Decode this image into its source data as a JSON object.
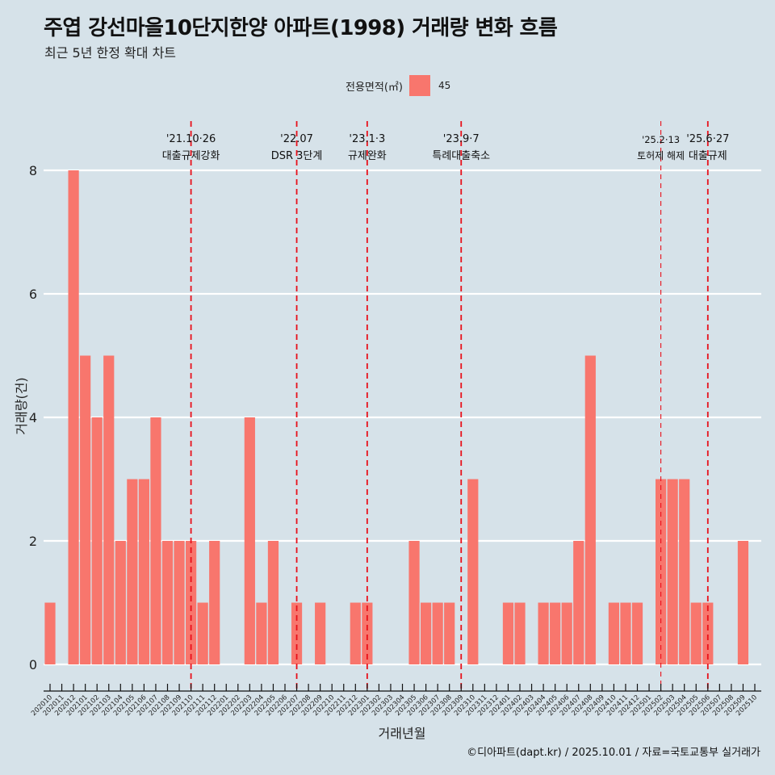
{
  "title": "주엽 강선마을10단지한양 아파트(1998) 거래량 변화 흐름",
  "subtitle": "최근 5년 한정 확대 차트",
  "caption": "©디아파트(dapt.kr) / 2025.10.01 / 자료=국토교통부 실거래가",
  "colors": {
    "background": "#d6e2e9",
    "bar": "#f8766d",
    "event_line": "#e8101a",
    "grid": "#ffffff"
  },
  "legend": {
    "title": "전용면적(㎡)",
    "entries": [
      {
        "label": "45",
        "color": "#f8766d"
      }
    ]
  },
  "chart_data": {
    "type": "bar",
    "title": "주엽 강선마을10단지한양 아파트(1998) 거래량 변화 흐름",
    "subtitle": "최근 5년 한정 확대 차트",
    "xlabel": "거래년월",
    "ylabel": "거래량(건)",
    "ylim": [
      0,
      8
    ],
    "yticks": [
      0,
      2,
      4,
      6,
      8
    ],
    "grid": true,
    "legend_position": "top",
    "categories": [
      "202010",
      "202011",
      "202012",
      "202101",
      "202102",
      "202103",
      "202104",
      "202105",
      "202106",
      "202107",
      "202108",
      "202109",
      "202110",
      "202111",
      "202112",
      "202201",
      "202202",
      "202203",
      "202204",
      "202205",
      "202206",
      "202207",
      "202208",
      "202209",
      "202210",
      "202211",
      "202212",
      "202301",
      "202302",
      "202303",
      "202304",
      "202305",
      "202306",
      "202307",
      "202308",
      "202309",
      "202310",
      "202311",
      "202312",
      "202401",
      "202402",
      "202403",
      "202404",
      "202405",
      "202406",
      "202407",
      "202408",
      "202409",
      "202410",
      "202411",
      "202412",
      "202501",
      "202502",
      "202503",
      "202504",
      "202505",
      "202506",
      "202507",
      "202508",
      "202509",
      "202510"
    ],
    "series": [
      {
        "name": "45",
        "values": [
          1,
          0,
          8,
          5,
          4,
          5,
          2,
          3,
          3,
          4,
          2,
          2,
          2,
          1,
          2,
          0,
          0,
          4,
          1,
          2,
          0,
          1,
          0,
          1,
          0,
          0,
          1,
          1,
          0,
          0,
          0,
          2,
          1,
          1,
          1,
          0,
          3,
          0,
          0,
          1,
          1,
          0,
          1,
          1,
          1,
          2,
          5,
          0,
          1,
          1,
          1,
          0,
          3,
          3,
          3,
          1,
          1,
          0,
          0,
          2,
          0
        ]
      }
    ],
    "annotations": [
      {
        "category": "202110",
        "date": "'21.10·26",
        "label": "대출규제강화",
        "style": "thick"
      },
      {
        "category": "202207",
        "date": "'22.07",
        "label": "DSR 3단계",
        "style": "thick"
      },
      {
        "category": "202301",
        "date": "'23.1·3",
        "label": "규제완화",
        "style": "thick"
      },
      {
        "category": "202309",
        "date": "'23.9·7",
        "label": "특례대출축소",
        "style": "thick"
      },
      {
        "category": "202502",
        "date": "'25.2·13",
        "label": "토허제 해제",
        "style": "thin"
      },
      {
        "category": "202506",
        "date": "'25.6·27",
        "label": "대출규제",
        "style": "thick"
      }
    ]
  }
}
